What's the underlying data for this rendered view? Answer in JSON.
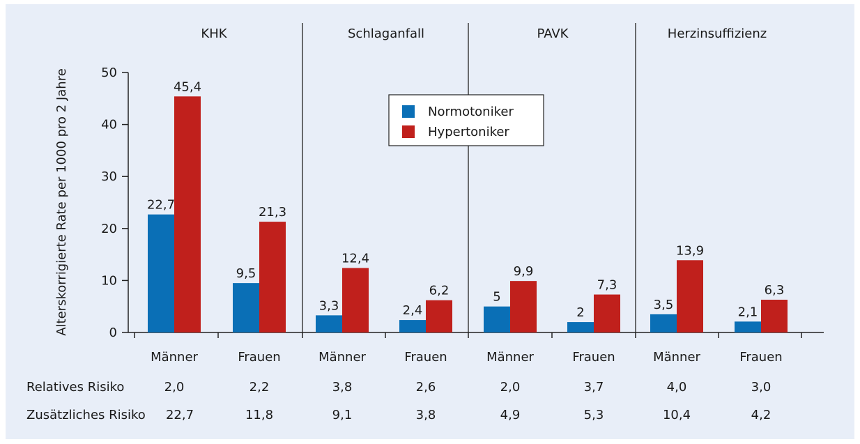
{
  "chart_data": {
    "type": "bar",
    "ylabel": "Alterskorrigierte Rate per 1000 pro 2 Jahre",
    "ylim": [
      0,
      50
    ],
    "yticks": [
      0,
      10,
      20,
      30,
      40,
      50
    ],
    "colors": {
      "normo": "#0a6fb6",
      "hyper": "#c0201c"
    },
    "groups": [
      {
        "name": "KHK",
        "categories": [
          {
            "label": "Männer",
            "normo": 22.7,
            "normo_label": "22,7",
            "hyper": 45.4,
            "hyper_label": "45,4"
          },
          {
            "label": "Frauen",
            "normo": 9.5,
            "normo_label": "9,5",
            "hyper": 21.3,
            "hyper_label": "21,3"
          }
        ]
      },
      {
        "name": "Schlaganfall",
        "categories": [
          {
            "label": "Männer",
            "normo": 3.3,
            "normo_label": "3,3",
            "hyper": 12.4,
            "hyper_label": "12,4"
          },
          {
            "label": "Frauen",
            "normo": 2.4,
            "normo_label": "2,4",
            "hyper": 6.2,
            "hyper_label": "6,2"
          }
        ]
      },
      {
        "name": "PAVK",
        "categories": [
          {
            "label": "Männer",
            "normo": 5,
            "normo_label": "5",
            "hyper": 9.9,
            "hyper_label": "9,9"
          },
          {
            "label": "Frauen",
            "normo": 2,
            "normo_label": "2",
            "hyper": 7.3,
            "hyper_label": "7,3"
          }
        ]
      },
      {
        "name": "Herzinsuffizienz",
        "categories": [
          {
            "label": "Männer",
            "normo": 3.5,
            "normo_label": "3,5",
            "hyper": 13.9,
            "hyper_label": "13,9"
          },
          {
            "label": "Frauen",
            "normo": 2.1,
            "normo_label": "2,1",
            "hyper": 6.3,
            "hyper_label": "6,3"
          }
        ]
      }
    ],
    "series": [
      {
        "name": "Normotoniker"
      },
      {
        "name": "Hypertoniker"
      }
    ],
    "legend_position": "top-center",
    "risk_rows": [
      {
        "label": "Relatives Risiko",
        "values": [
          "2,0",
          "2,2",
          "3,8",
          "2,6",
          "2,0",
          "3,7",
          "4,0",
          "3,0"
        ]
      },
      {
        "label": "Zusätzliches Risiko",
        "values": [
          "22,7",
          "11,8",
          "9,1",
          "3,8",
          "4,9",
          "5,3",
          "10,4",
          "4,2"
        ]
      }
    ]
  }
}
